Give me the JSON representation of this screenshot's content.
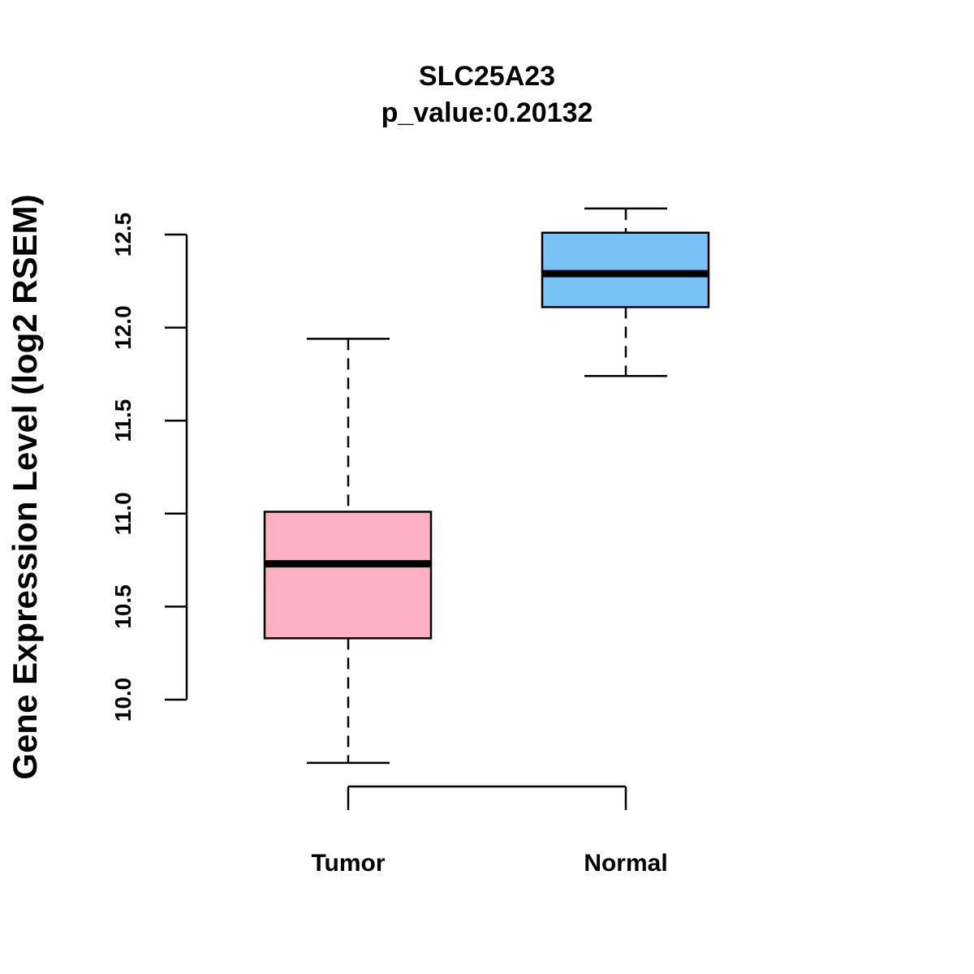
{
  "chart_data": {
    "type": "box",
    "title": "SLC25A23",
    "subtitle": "p_value:0.20132",
    "xlabel": "",
    "ylabel": "Gene Expression Level (log2 RSEM)",
    "ylim": [
      9.55,
      12.75
    ],
    "yticks": [
      10.0,
      10.5,
      11.0,
      11.5,
      12.0,
      12.5
    ],
    "ytick_labels": [
      "10.0",
      "10.5",
      "11.0",
      "11.5",
      "12.0",
      "12.5"
    ],
    "categories": [
      "Tumor",
      "Normal"
    ],
    "boxes": [
      {
        "name": "Tumor",
        "whisker_low": 9.66,
        "q1": 10.33,
        "median": 10.73,
        "q3": 11.01,
        "whisker_high": 11.94,
        "color": "#FFB0C4"
      },
      {
        "name": "Normal",
        "whisker_low": 11.74,
        "q1": 12.11,
        "median": 12.29,
        "q3": 12.51,
        "whisker_high": 12.64,
        "color": "#78C2F8"
      }
    ],
    "grid": false,
    "legend": "none"
  }
}
